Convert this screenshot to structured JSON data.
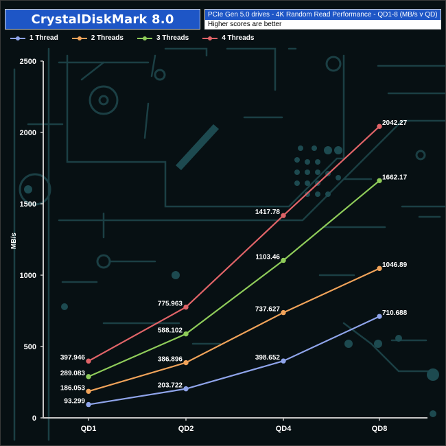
{
  "header": {
    "title": "CrystalDiskMark 8.0",
    "subtitle": "PCIe Gen 5.0 drives - 4K Random Read Performance - QD1-8 (MB/s v QD)",
    "note": "Higher scores are better"
  },
  "colors": {
    "title_bg": "#1e56c6",
    "background": "#071013",
    "circuit": "#1b3f44",
    "axis": "#c8c8c8",
    "text": "#ffffff"
  },
  "chart_data": {
    "type": "line",
    "categories": [
      "QD1",
      "QD2",
      "QD4",
      "QD8"
    ],
    "ylabel": "MB/s",
    "ylim": [
      0,
      2500
    ],
    "yticks": [
      0,
      500,
      1000,
      1500,
      2000,
      2500
    ],
    "grid": false,
    "legend_position": "top-left",
    "series": [
      {
        "name": "1 Thread",
        "color": "#8fa4ea",
        "values": [
          93.299,
          203.722,
          398.652,
          710.688
        ],
        "labels": [
          "93.299",
          "203.722",
          "398.652",
          "710.688"
        ]
      },
      {
        "name": "2 Threads",
        "color": "#f0a35a",
        "values": [
          186.053,
          386.896,
          737.627,
          1046.89
        ],
        "labels": [
          "186.053",
          "386.896",
          "737.627",
          "1046.89"
        ]
      },
      {
        "name": "3 Threads",
        "color": "#8fcc5a",
        "values": [
          289.083,
          588.102,
          1103.46,
          1662.17
        ],
        "labels": [
          "289.083",
          "588.102",
          "1103.46",
          "1662.17"
        ]
      },
      {
        "name": "4 Threads",
        "color": "#e06468",
        "values": [
          397.946,
          775.963,
          1417.78,
          2042.27
        ],
        "labels": [
          "397.946",
          "775.963",
          "1417.78",
          "2042.27"
        ]
      }
    ]
  }
}
